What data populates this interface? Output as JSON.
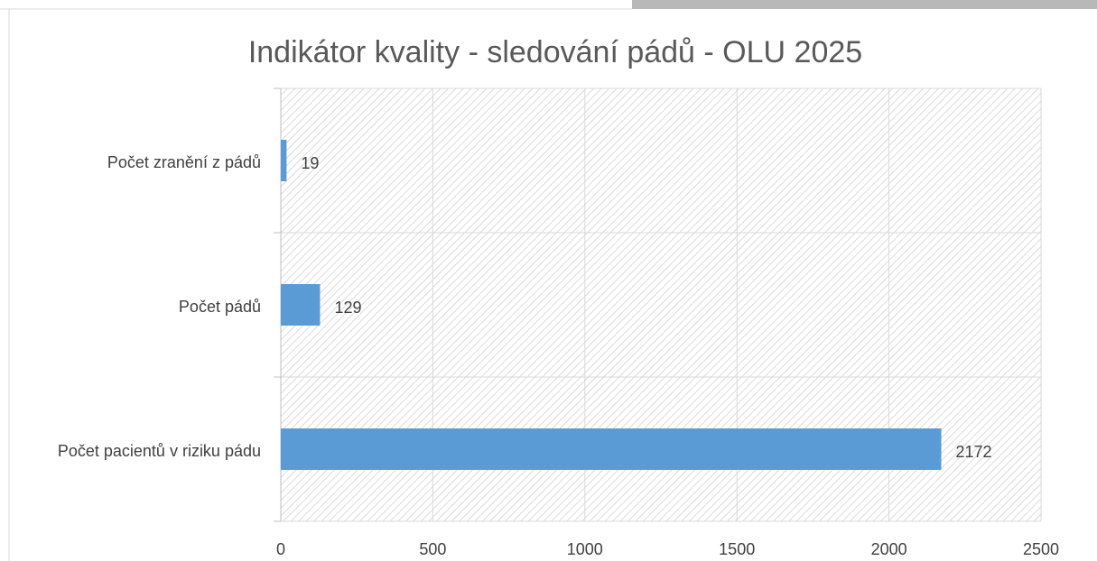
{
  "chart_data": {
    "type": "bar",
    "orientation": "horizontal",
    "title": "Indikátor kvality - sledování pádů - OLU 2025",
    "categories": [
      "Počet zranění z pádů",
      "Počet pádů",
      "Počet pacientů v riziku pádu"
    ],
    "values": [
      19,
      129,
      2172
    ],
    "color": "#5b9bd5",
    "xlim": [
      0,
      2500
    ],
    "xticks": [
      0,
      500,
      1000,
      1500,
      2000,
      2500
    ],
    "grid": true
  }
}
